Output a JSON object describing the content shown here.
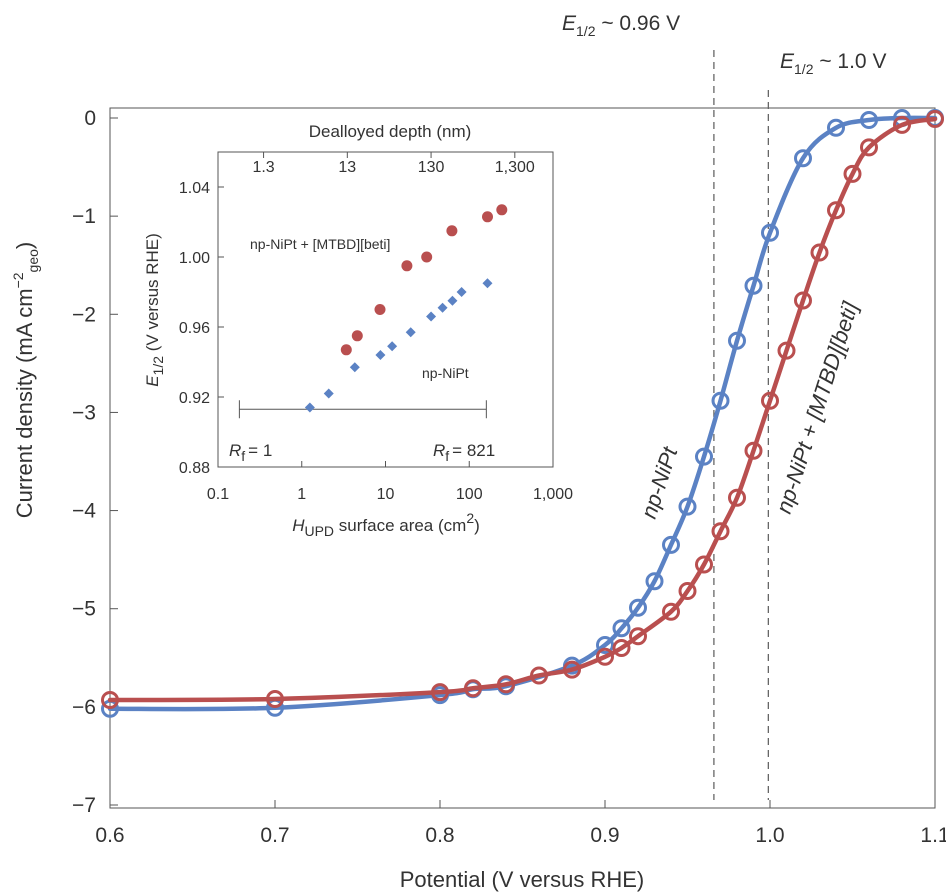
{
  "chart_data": [
    {
      "type": "line",
      "xlabel": "Potential (V versus RHE)",
      "ylabel_parts": [
        "Current density (mA cm",
        "−2",
        "geo",
        ")"
      ],
      "xlim": [
        0.6,
        1.1
      ],
      "ylim": [
        -7,
        0
      ],
      "xticks": [
        0.6,
        0.7,
        0.8,
        0.9,
        1.0,
        1.1
      ],
      "xtick_labels": [
        "0.6",
        "0.7",
        "0.8",
        "0.9",
        "1.0",
        "1.1"
      ],
      "yticks": [
        0,
        -1,
        -2,
        -3,
        -4,
        -5,
        -6,
        -7
      ],
      "ytick_labels": [
        "0",
        "−1",
        "−2",
        "−3",
        "−4",
        "−5",
        "−6",
        "−7"
      ],
      "series": [
        {
          "name": "np-NiPt",
          "color": "#5b82c4",
          "marker": "open-circle",
          "points": [
            [
              0.6,
              -6.02
            ],
            [
              0.7,
              -6.01
            ],
            [
              0.8,
              -5.88
            ],
            [
              0.82,
              -5.82
            ],
            [
              0.84,
              -5.79
            ],
            [
              0.88,
              -5.58
            ],
            [
              0.9,
              -5.37
            ],
            [
              0.91,
              -5.2
            ],
            [
              0.92,
              -4.99
            ],
            [
              0.93,
              -4.72
            ],
            [
              0.94,
              -4.35
            ],
            [
              0.95,
              -3.96
            ],
            [
              0.96,
              -3.45
            ],
            [
              0.97,
              -2.88
            ],
            [
              0.98,
              -2.27
            ],
            [
              0.99,
              -1.71
            ],
            [
              1.0,
              -1.17
            ],
            [
              1.02,
              -0.41
            ],
            [
              1.04,
              -0.1
            ],
            [
              1.06,
              -0.02
            ],
            [
              1.08,
              0.0
            ],
            [
              1.1,
              0.0
            ]
          ]
        },
        {
          "name": "np-NiPt + [MTBD][beti]",
          "color": "#b94f4f",
          "marker": "open-circle",
          "points": [
            [
              0.6,
              -5.93
            ],
            [
              0.7,
              -5.92
            ],
            [
              0.8,
              -5.85
            ],
            [
              0.82,
              -5.81
            ],
            [
              0.84,
              -5.77
            ],
            [
              0.86,
              -5.68
            ],
            [
              0.88,
              -5.62
            ],
            [
              0.9,
              -5.49
            ],
            [
              0.91,
              -5.4
            ],
            [
              0.92,
              -5.28
            ],
            [
              0.94,
              -5.03
            ],
            [
              0.95,
              -4.82
            ],
            [
              0.96,
              -4.55
            ],
            [
              0.97,
              -4.21
            ],
            [
              0.98,
              -3.87
            ],
            [
              0.99,
              -3.39
            ],
            [
              1.0,
              -2.88
            ],
            [
              1.01,
              -2.37
            ],
            [
              1.02,
              -1.86
            ],
            [
              1.03,
              -1.37
            ],
            [
              1.04,
              -0.94
            ],
            [
              1.05,
              -0.57
            ],
            [
              1.06,
              -0.3
            ],
            [
              1.08,
              -0.07
            ],
            [
              1.1,
              -0.01
            ]
          ]
        }
      ],
      "annotations": [
        {
          "name": "ehalf-left",
          "e": "E",
          "sub": "1/2",
          "rest": " ~ 0.96 V",
          "x_value": 0.966
        },
        {
          "name": "ehalf-right",
          "e": "E",
          "sub": "1/2",
          "rest": " ~ 1.0 V",
          "x_value": 0.999
        }
      ],
      "grid": false
    },
    {
      "type": "scatter",
      "x_scale": "log",
      "xlabel_parts": [
        "H",
        "UPD",
        " surface area (cm",
        "2",
        ")"
      ],
      "ylabel_parts": [
        "E",
        "1/2",
        " (V versus RHE)"
      ],
      "top_axis_label": "Dealloyed depth (nm)",
      "xlim": [
        0.1,
        1000
      ],
      "ylim": [
        0.88,
        1.06
      ],
      "xticks": [
        0.1,
        1,
        10,
        100,
        1000
      ],
      "xtick_labels": [
        "0.1",
        "1",
        "10",
        "100",
        "1,000"
      ],
      "top_ticks": [
        0.35,
        3.5,
        35,
        350
      ],
      "top_tick_labels": [
        "1.3",
        "13",
        "130",
        "1,300"
      ],
      "yticks": [
        0.88,
        0.92,
        0.96,
        1.0,
        1.04
      ],
      "ytick_labels": [
        "0.88",
        "0.92",
        "0.96",
        "1.00",
        "1.04"
      ],
      "series": [
        {
          "name": "np-NiPt + [MTBD][beti]",
          "color": "#b94f4f",
          "marker": "circle",
          "points": [
            [
              3.4,
              0.947
            ],
            [
              4.6,
              0.955
            ],
            [
              8.6,
              0.97
            ],
            [
              18,
              0.995
            ],
            [
              31,
              1.0
            ],
            [
              62,
              1.015
            ],
            [
              165,
              1.023
            ],
            [
              245,
              1.027
            ]
          ]
        },
        {
          "name": "np-NiPt",
          "color": "#5b82c4",
          "marker": "diamond",
          "points": [
            [
              1.25,
              0.914
            ],
            [
              2.1,
              0.922
            ],
            [
              4.3,
              0.937
            ],
            [
              8.7,
              0.944
            ],
            [
              12,
              0.949
            ],
            [
              20,
              0.957
            ],
            [
              35,
              0.966
            ],
            [
              48,
              0.971
            ],
            [
              63,
              0.975
            ],
            [
              81,
              0.98
            ],
            [
              165,
              0.985
            ]
          ]
        }
      ],
      "rf_bar": {
        "x_start": 0.18,
        "x_end": 160,
        "y": 0.913,
        "label_left": "= 1",
        "label_right": "= 821",
        "r": "R",
        "sub": "f"
      }
    }
  ]
}
